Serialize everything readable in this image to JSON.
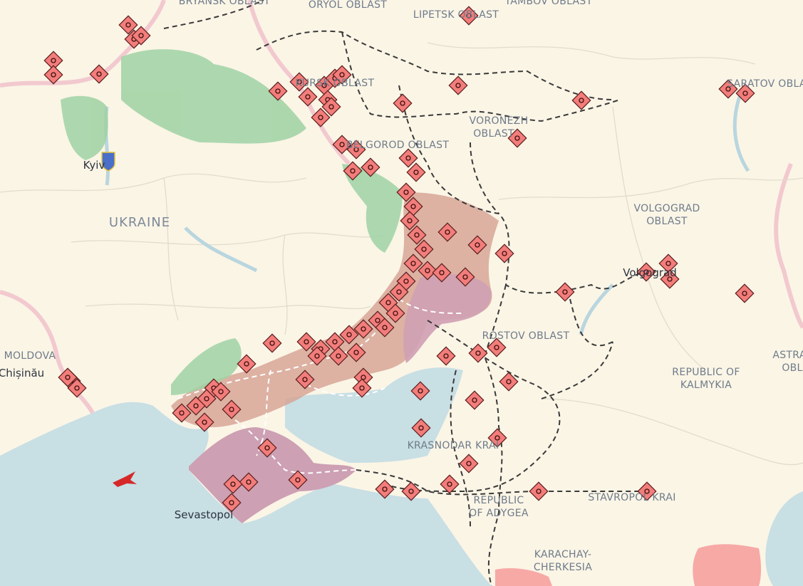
{
  "labels": {
    "bryansk": "BRYANSK OBLAST",
    "oryol": "ORYOL OBLAST",
    "lipetsk": "LIPETSK OBLAST",
    "tambov": "TAMBOV OBLAST",
    "saratov": "SARATOV OBLAST",
    "kursk": "KURSK OBLAST",
    "voronezh_1": "VORONEZH",
    "voronezh_2": "OBLAST",
    "belgorod": "BELGOROD OBLAST",
    "kyiv": "Kyiv",
    "ukraine": "UKRAINE",
    "volgograd_obl_1": "VOLGOGRAD",
    "volgograd_obl_2": "OBLAST",
    "volgograd": "Volgograd",
    "rostov": "ROSTOV OBLAST",
    "moldova": "MOLDOVA",
    "chisinau": "Chișinău",
    "kalmykia_1": "REPUBLIC OF",
    "kalmykia_2": "KALMYKIA",
    "astrakhan_1": "ASTRA",
    "astrakhan_2": "OBL",
    "krasnodar": "KRASNODAR KRAI",
    "adygea_1": "REPUBLIC",
    "adygea_2": "OF ADYGEA",
    "stavropol": "STAVROPOL KRAI",
    "karachay_1": "KARACHAY-",
    "karachay_2": "CHERKESIA",
    "sevastopol": "Sevastopol"
  }
}
